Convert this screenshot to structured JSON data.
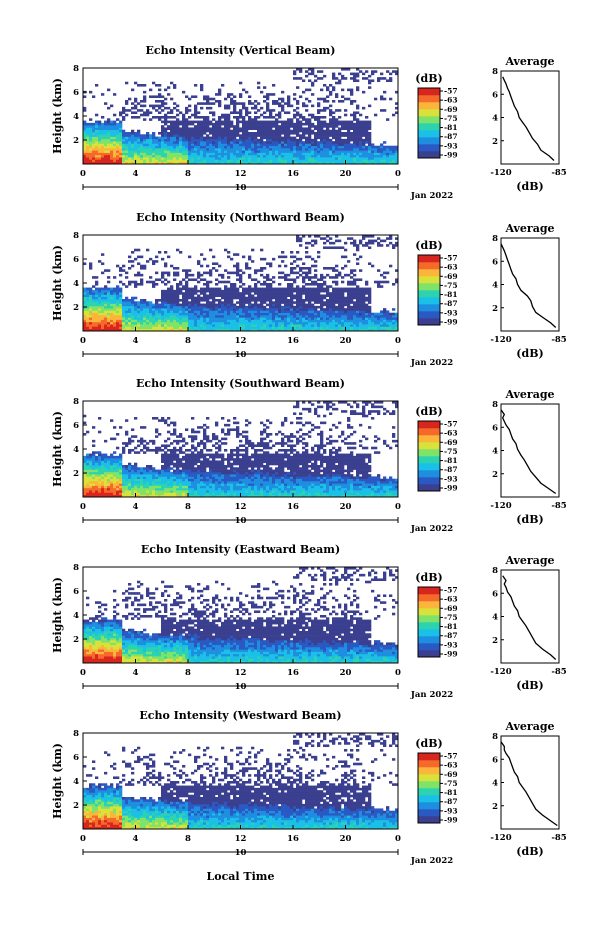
{
  "figure": {
    "xlabel": "Local Time",
    "date_label": "Jan 2022",
    "day_marker": "10",
    "colorbar_unit": "(dB)",
    "colorbar_ticks": [
      "-57",
      "-63",
      "-69",
      "-75",
      "-81",
      "-87",
      "-93",
      "-99"
    ],
    "colors": [
      "#3b3f8f",
      "#2b59c3",
      "#1e8fe0",
      "#1ac0e6",
      "#2dd3b0",
      "#7fe36a",
      "#d8e23a",
      "#fbb53a",
      "#f56a2a",
      "#d7261e"
    ],
    "profile_title": "Average",
    "profile_xlabel": "(dB)"
  },
  "chart_data": [
    {
      "type": "heatmap",
      "title": "Echo Intensity (Vertical Beam)",
      "ylabel": "Height (km)",
      "x_ticks": [
        "0",
        "4",
        "8",
        "12",
        "16",
        "20",
        "0"
      ],
      "y_ticks": [
        "2",
        "4",
        "6",
        "8"
      ],
      "xlim": [
        0,
        24
      ],
      "ylim": [
        0,
        8
      ],
      "profile": {
        "x_ticks": [
          "-120",
          "-85"
        ],
        "y_ticks": [
          "2",
          "4",
          "6",
          "8"
        ],
        "xlim": [
          -120,
          -85
        ],
        "ylim": [
          0,
          8
        ],
        "x": [
          -88,
          -91,
          -96,
          -98,
          -101,
          -103,
          -105,
          -107,
          -109,
          -110,
          -112,
          -113,
          -114,
          -115,
          -116,
          -117,
          -118,
          -119
        ],
        "y": [
          0.3,
          0.7,
          1.2,
          1.7,
          2.2,
          2.7,
          3.2,
          3.6,
          4.0,
          4.5,
          5.0,
          5.4,
          5.8,
          6.2,
          6.5,
          6.9,
          7.2,
          7.5
        ]
      }
    },
    {
      "type": "heatmap",
      "title": "Echo Intensity (Northward Beam)",
      "ylabel": "Height (km)",
      "x_ticks": [
        "0",
        "4",
        "8",
        "12",
        "16",
        "20",
        "0"
      ],
      "y_ticks": [
        "2",
        "4",
        "6",
        "8"
      ],
      "xlim": [
        0,
        24
      ],
      "ylim": [
        0,
        8
      ],
      "profile": {
        "x_ticks": [
          "-120",
          "-85"
        ],
        "y_ticks": [
          "2",
          "4",
          "6",
          "8"
        ],
        "xlim": [
          -120,
          -85
        ],
        "ylim": [
          0,
          8
        ],
        "x": [
          -87,
          -90,
          -95,
          -99,
          -101,
          -102,
          -104,
          -108,
          -110,
          -111,
          -113,
          -114,
          -115,
          -116,
          -117,
          -118,
          -119,
          -120
        ],
        "y": [
          0.3,
          0.7,
          1.2,
          1.6,
          2.1,
          2.6,
          3.0,
          3.5,
          4.0,
          4.5,
          4.9,
          5.3,
          5.7,
          6.1,
          6.5,
          6.9,
          7.2,
          7.5
        ]
      }
    },
    {
      "type": "heatmap",
      "title": "Echo Intensity (Southward Beam)",
      "ylabel": "Height (km)",
      "x_ticks": [
        "0",
        "4",
        "8",
        "12",
        "16",
        "20",
        "0"
      ],
      "y_ticks": [
        "2",
        "4",
        "6",
        "8"
      ],
      "xlim": [
        0,
        24
      ],
      "ylim": [
        0,
        8
      ],
      "profile": {
        "x_ticks": [
          "-120",
          "-85"
        ],
        "y_ticks": [
          "2",
          "4",
          "6",
          "8"
        ],
        "xlim": [
          -120,
          -85
        ],
        "ylim": [
          0,
          8
        ],
        "x": [
          -87,
          -91,
          -96,
          -99,
          -102,
          -104,
          -106,
          -108,
          -110,
          -111,
          -113,
          -114,
          -115,
          -117,
          -118,
          -119,
          -118,
          -120
        ],
        "y": [
          0.3,
          0.7,
          1.2,
          1.7,
          2.2,
          2.7,
          3.2,
          3.6,
          4.1,
          4.6,
          5.0,
          5.4,
          5.8,
          6.2,
          6.5,
          6.8,
          7.1,
          7.5
        ]
      }
    },
    {
      "type": "heatmap",
      "title": "Echo Intensity (Eastward Beam)",
      "ylabel": "Height (km)",
      "x_ticks": [
        "0",
        "4",
        "8",
        "12",
        "16",
        "20",
        "0"
      ],
      "y_ticks": [
        "2",
        "4",
        "6",
        "8"
      ],
      "xlim": [
        0,
        24
      ],
      "ylim": [
        0,
        8
      ],
      "profile": {
        "x_ticks": [
          "-120",
          "-85"
        ],
        "y_ticks": [
          "2",
          "4",
          "6",
          "8"
        ],
        "xlim": [
          -120,
          -85
        ],
        "ylim": [
          0,
          8
        ],
        "x": [
          -87,
          -90,
          -95,
          -99,
          -101,
          -103,
          -105,
          -107,
          -109,
          -110,
          -112,
          -113,
          -114,
          -116,
          -117,
          -118,
          -117,
          -119
        ],
        "y": [
          0.3,
          0.7,
          1.2,
          1.7,
          2.2,
          2.7,
          3.2,
          3.6,
          4.0,
          4.5,
          4.9,
          5.3,
          5.7,
          6.1,
          6.5,
          6.8,
          7.1,
          7.5
        ]
      }
    },
    {
      "type": "heatmap",
      "title": "Echo Intensity (Westward Beam)",
      "ylabel": "Height (km)",
      "x_ticks": [
        "0",
        "4",
        "8",
        "12",
        "16",
        "20",
        "0"
      ],
      "y_ticks": [
        "2",
        "4",
        "6",
        "8"
      ],
      "xlim": [
        0,
        24
      ],
      "ylim": [
        0,
        8
      ],
      "profile": {
        "x_ticks": [
          "-120",
          "-85"
        ],
        "y_ticks": [
          "2",
          "4",
          "6",
          "8"
        ],
        "xlim": [
          -120,
          -85
        ],
        "ylim": [
          0,
          8
        ],
        "x": [
          -86,
          -90,
          -95,
          -99,
          -101,
          -103,
          -105,
          -107,
          -109,
          -110,
          -112,
          -113,
          -114,
          -115,
          -117,
          -118,
          -118,
          -120
        ],
        "y": [
          0.3,
          0.7,
          1.2,
          1.7,
          2.2,
          2.7,
          3.2,
          3.6,
          4.0,
          4.5,
          4.9,
          5.3,
          5.7,
          6.1,
          6.5,
          6.8,
          7.1,
          7.5
        ]
      }
    }
  ]
}
